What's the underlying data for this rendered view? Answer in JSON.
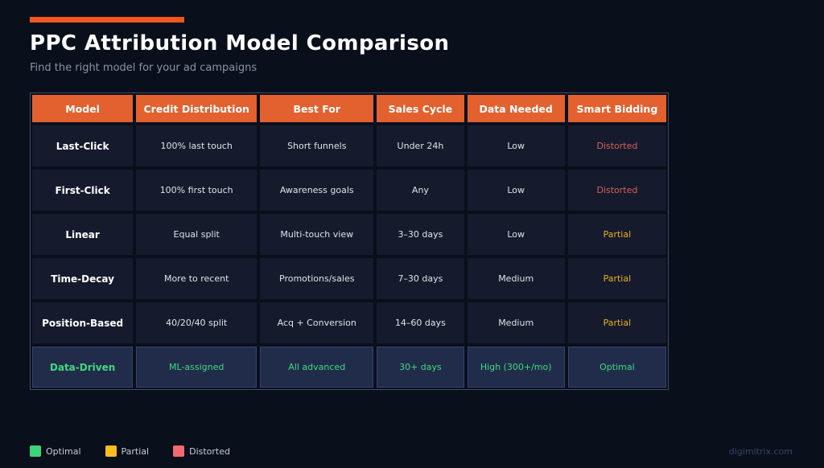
{
  "page": {
    "title": "PPC Attribution Model Comparison",
    "subtitle": "Find the right model for your ad campaigns",
    "footer_site": "digimitrix.com"
  },
  "table": {
    "columns": [
      "Model",
      "Credit Distribution",
      "Best For",
      "Sales Cycle",
      "Data Needed",
      "Smart Bidding"
    ],
    "rows": [
      {
        "model": "Last-Click",
        "credit": "100% last touch",
        "best": "Short funnels",
        "cycle": "Under 24h",
        "data": "Low",
        "bidding": "Distorted",
        "status": "distorted",
        "highlighted": false
      },
      {
        "model": "First-Click",
        "credit": "100% first touch",
        "best": "Awareness goals",
        "cycle": "Any",
        "data": "Low",
        "bidding": "Distorted",
        "status": "distorted",
        "highlighted": false
      },
      {
        "model": "Linear",
        "credit": "Equal split",
        "best": "Multi-touch view",
        "cycle": "3–30 days",
        "data": "Low",
        "bidding": "Partial",
        "status": "partial",
        "highlighted": false
      },
      {
        "model": "Time-Decay",
        "credit": "More to recent",
        "best": "Promotions/sales",
        "cycle": "7–30 days",
        "data": "Medium",
        "bidding": "Partial",
        "status": "partial",
        "highlighted": false
      },
      {
        "model": "Position-Based",
        "credit": "40/20/40 split",
        "best": "Acq + Conversion",
        "cycle": "14–60 days",
        "data": "Medium",
        "bidding": "Partial",
        "status": "partial",
        "highlighted": false
      },
      {
        "model": "Data-Driven",
        "credit": "ML-assigned",
        "best": "All advanced",
        "cycle": "30+ days",
        "data": "High (300+/mo)",
        "bidding": "Optimal",
        "status": "optimal",
        "highlighted": true
      }
    ]
  },
  "legend": [
    {
      "label": "Optimal",
      "color": "#3bd47a"
    },
    {
      "label": "Partial",
      "color": "#f9bd1e"
    },
    {
      "label": "Distorted",
      "color": "#f2696f"
    }
  ],
  "colors": {
    "background": "#0a0f1c",
    "accent_bar": "#f1571f",
    "header_cell": "#e2612e",
    "cell_background": "#151b2d",
    "highlight_row_background": "#212c4b",
    "table_border": "#3e4d68",
    "status_distorted_text": "#d95f5b",
    "status_partial_text": "#eab11c",
    "status_optimal_text": "#41da7e"
  }
}
